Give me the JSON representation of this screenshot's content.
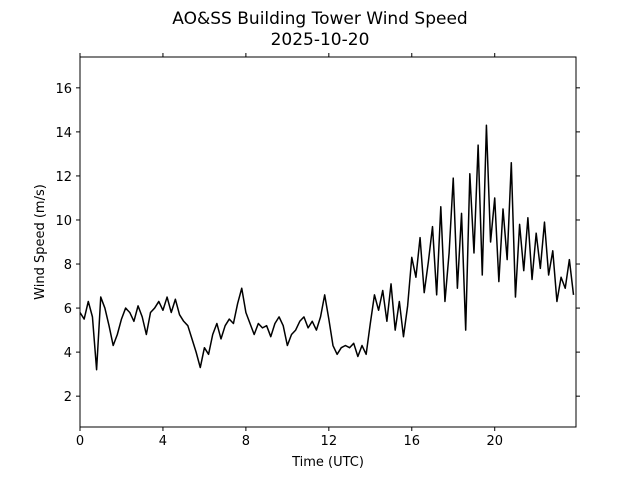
{
  "chart_data": {
    "type": "line",
    "title": "AO&SS Building Tower Wind Speed",
    "subtitle": "2025-10-20",
    "x_label": "Time (UTC)",
    "y_label": "Wind Speed (m/s)",
    "xlim": [
      0,
      23.92
    ],
    "ylim": [
      0.6,
      17.4
    ],
    "xticks": [
      0,
      4,
      8,
      12,
      16,
      20
    ],
    "yticks": [
      2,
      4,
      6,
      8,
      10,
      12,
      14,
      16
    ],
    "grid": false,
    "x": [
      0,
      0.2,
      0.4,
      0.6,
      0.8,
      1,
      1.2,
      1.4,
      1.6,
      1.8,
      2,
      2.2,
      2.4,
      2.6,
      2.8,
      3,
      3.2,
      3.4,
      3.6,
      3.8,
      4,
      4.2,
      4.4,
      4.6,
      4.8,
      5,
      5.2,
      5.4,
      5.6,
      5.8,
      6,
      6.2,
      6.4,
      6.6,
      6.8,
      7,
      7.2,
      7.4,
      7.6,
      7.8,
      8,
      8.2,
      8.4,
      8.6,
      8.8,
      9,
      9.2,
      9.4,
      9.6,
      9.8,
      10,
      10.2,
      10.4,
      10.6,
      10.8,
      11,
      11.2,
      11.4,
      11.6,
      11.8,
      12,
      12.2,
      12.4,
      12.6,
      12.8,
      13,
      13.2,
      13.4,
      13.6,
      13.8,
      14,
      14.2,
      14.4,
      14.6,
      14.8,
      15,
      15.2,
      15.4,
      15.6,
      15.8,
      16,
      16.2,
      16.4,
      16.6,
      16.8,
      17,
      17.2,
      17.4,
      17.6,
      17.8,
      18,
      18.2,
      18.4,
      18.6,
      18.8,
      19,
      19.2,
      19.4,
      19.6,
      19.8,
      20,
      20.2,
      20.4,
      20.6,
      20.8,
      21,
      21.2,
      21.4,
      21.6,
      21.8,
      22,
      22.2,
      22.4,
      22.6,
      22.8,
      23,
      23.2,
      23.4,
      23.6,
      23.8
    ],
    "series": [
      {
        "name": "Wind Speed",
        "color": "#000000",
        "values": [
          5.8,
          5.5,
          6.3,
          5.6,
          3.2,
          6.5,
          6.0,
          5.2,
          4.3,
          4.8,
          5.5,
          6.0,
          5.8,
          5.4,
          6.1,
          5.6,
          4.8,
          5.8,
          6.0,
          6.3,
          5.9,
          6.5,
          5.8,
          6.4,
          5.7,
          5.4,
          5.2,
          4.6,
          4.0,
          3.3,
          4.2,
          3.9,
          4.8,
          5.3,
          4.6,
          5.2,
          5.5,
          5.3,
          6.2,
          6.9,
          5.8,
          5.3,
          4.8,
          5.3,
          5.1,
          5.2,
          4.7,
          5.3,
          5.6,
          5.2,
          4.3,
          4.8,
          5.0,
          5.4,
          5.6,
          5.1,
          5.4,
          5.0,
          5.6,
          6.6,
          5.5,
          4.3,
          3.9,
          4.2,
          4.3,
          4.2,
          4.4,
          3.8,
          4.3,
          3.9,
          5.3,
          6.6,
          5.9,
          6.8,
          5.4,
          7.1,
          5.0,
          6.3,
          4.7,
          6.1,
          8.3,
          7.4,
          9.2,
          6.7,
          8.1,
          9.7,
          6.6,
          10.6,
          6.3,
          8.5,
          11.9,
          6.9,
          10.3,
          5.0,
          12.1,
          8.5,
          13.4,
          7.5,
          14.3,
          9.0,
          11.0,
          7.2,
          10.5,
          8.2,
          12.6,
          6.5,
          9.8,
          7.7,
          10.1,
          7.3,
          9.4,
          7.8,
          9.9,
          7.5,
          8.6,
          6.3,
          7.4,
          6.9,
          8.2,
          6.6
        ]
      }
    ]
  }
}
